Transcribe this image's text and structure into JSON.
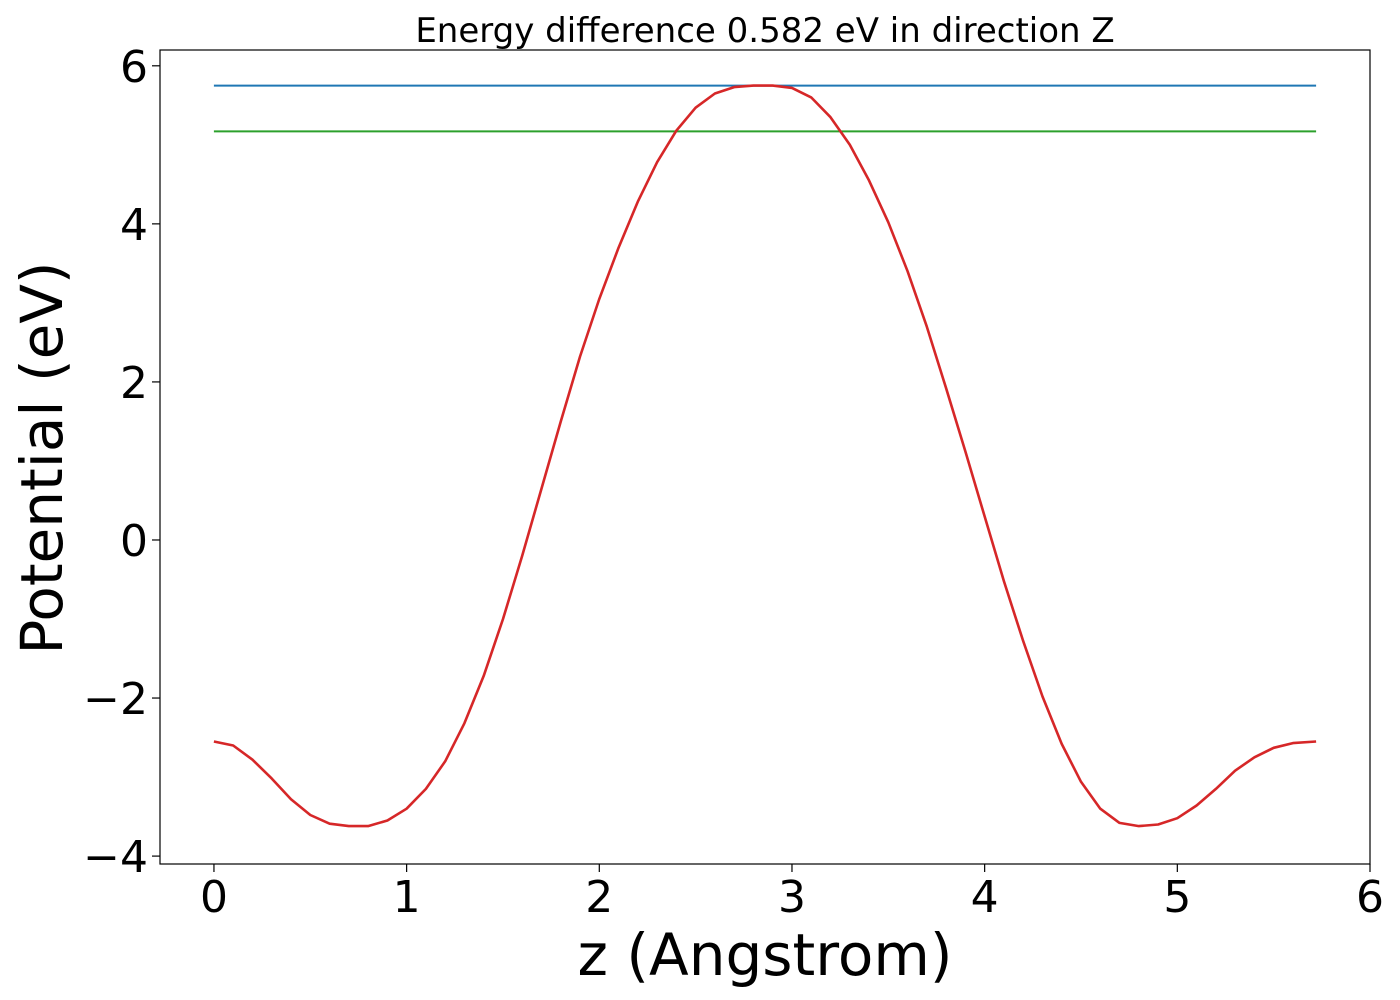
{
  "chart_data": {
    "type": "line",
    "title": "Energy difference 0.582 eV in direction Z",
    "xlabel": "z (Angstrom)",
    "ylabel": "Potential (eV)",
    "xlim": [
      -0.28,
      6.0
    ],
    "ylim": [
      -4.1,
      6.2
    ],
    "xticks": [
      0,
      1,
      2,
      3,
      4,
      5,
      6
    ],
    "xtick_labels": [
      "0",
      "1",
      "2",
      "3",
      "4",
      "5",
      "6"
    ],
    "yticks": [
      -4,
      -2,
      0,
      2,
      4,
      6
    ],
    "ytick_labels": [
      "−4",
      "−2",
      "0",
      "2",
      "4",
      "6"
    ],
    "grid": false,
    "legend": "none",
    "series": [
      {
        "color": "#1f77b4",
        "x": [
          0.0,
          5.72
        ],
        "y": [
          5.75,
          5.75
        ]
      },
      {
        "color": "#2ca02c",
        "x": [
          0.0,
          5.72
        ],
        "y": [
          5.17,
          5.17
        ]
      },
      {
        "color": "#d62728",
        "x": [
          0.0,
          0.1,
          0.2,
          0.3,
          0.4,
          0.5,
          0.6,
          0.7,
          0.8,
          0.9,
          1.0,
          1.1,
          1.2,
          1.3,
          1.4,
          1.5,
          1.6,
          1.7,
          1.8,
          1.9,
          2.0,
          2.1,
          2.2,
          2.3,
          2.4,
          2.5,
          2.6,
          2.7,
          2.8,
          2.9,
          3.0,
          3.1,
          3.2,
          3.3,
          3.4,
          3.5,
          3.6,
          3.7,
          3.8,
          3.9,
          4.0,
          4.1,
          4.2,
          4.3,
          4.4,
          4.5,
          4.6,
          4.7,
          4.8,
          4.9,
          5.0,
          5.1,
          5.2,
          5.3,
          5.4,
          5.5,
          5.6,
          5.72
        ],
        "y": [
          -2.55,
          -2.6,
          -2.78,
          -3.02,
          -3.28,
          -3.48,
          -3.59,
          -3.62,
          -3.62,
          -3.55,
          -3.4,
          -3.15,
          -2.8,
          -2.32,
          -1.72,
          -1.0,
          -0.2,
          0.65,
          1.5,
          2.32,
          3.05,
          3.7,
          4.28,
          4.78,
          5.18,
          5.47,
          5.65,
          5.73,
          5.75,
          5.75,
          5.72,
          5.6,
          5.35,
          5.0,
          4.55,
          4.02,
          3.4,
          2.7,
          1.92,
          1.12,
          0.3,
          -0.52,
          -1.28,
          -1.98,
          -2.58,
          -3.06,
          -3.4,
          -3.58,
          -3.62,
          -3.6,
          -3.52,
          -3.36,
          -3.15,
          -2.92,
          -2.75,
          -2.63,
          -2.57,
          -2.55
        ]
      }
    ]
  }
}
